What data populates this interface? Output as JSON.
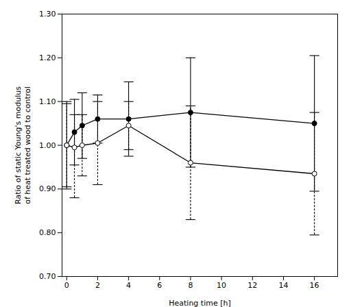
{
  "chart_data": {
    "type": "line",
    "xlabel": "Heating time [h]",
    "ylabel": "Ratio of static Young's modulus\nof heat treated wood to control",
    "x": [
      0,
      0.5,
      1,
      2,
      4,
      8,
      16
    ],
    "xlim": [
      -0.3,
      17.5
    ],
    "xticks": [
      0,
      2,
      4,
      6,
      8,
      10,
      12,
      14,
      16
    ],
    "ylim": [
      0.7,
      1.3
    ],
    "yticks": [
      {
        "value": 0.7,
        "label": "0.70"
      },
      {
        "value": 0.8,
        "label": "0.80"
      },
      {
        "value": 0.9,
        "label": "0.90"
      },
      {
        "value": 1.0,
        "label": "1.00"
      },
      {
        "value": 1.1,
        "label": "1.10"
      },
      {
        "value": 1.2,
        "label": "1.20"
      },
      {
        "value": 1.3,
        "label": "1.30"
      }
    ],
    "grid": false,
    "series": [
      {
        "color": "black",
        "marker": "filled_circle",
        "line_style": "solid",
        "values": [
          1.0,
          1.03,
          1.045,
          1.06,
          1.06,
          1.075,
          1.05
        ],
        "yerr_lower": [
          0.1,
          0.075,
          0.075,
          0.055,
          0.085,
          0.125,
          0.155
        ],
        "yerr_upper": [
          0.1,
          0.075,
          0.075,
          0.055,
          0.085,
          0.125,
          0.155
        ]
      },
      {
        "color": "black",
        "marker": "open_circle",
        "line_style": "solid",
        "values": [
          1.0,
          0.995,
          1.0,
          1.005,
          1.045,
          0.96,
          0.935
        ],
        "yerr_lower": [
          0.095,
          0.115,
          0.07,
          0.095,
          0.055,
          0.13,
          0.14
        ],
        "yerr_upper": [
          0.095,
          0.075,
          0.07,
          0.095,
          0.055,
          0.13,
          0.14
        ]
      }
    ]
  }
}
